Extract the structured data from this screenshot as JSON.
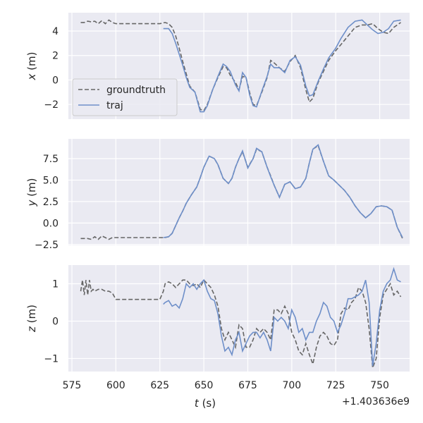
{
  "chart_data": [
    {
      "type": "line",
      "ylabel": "x (m)",
      "ylabel_var": "x",
      "ylabel_unit": " (m)",
      "xlim": [
        573,
        767
      ],
      "ylim": [
        -3.2,
        5.5
      ],
      "yticks": [
        4,
        2,
        0,
        -2
      ],
      "ytick_labels": [
        "4",
        "2",
        "0",
        "−2"
      ],
      "xticks": [
        575,
        600,
        625,
        650,
        675,
        700,
        725,
        750
      ],
      "grid": true,
      "legend": {
        "placement": "lower-left",
        "entries": [
          {
            "name": "groundtruth",
            "style": "dashed",
            "color": "#666666"
          },
          {
            "name": "traj",
            "style": "solid",
            "color": "#6e8fc9"
          }
        ]
      },
      "series": [
        {
          "name": "groundtruth",
          "x": [
            580,
            582,
            584,
            586,
            588,
            590,
            592,
            594,
            596,
            598,
            600,
            605,
            610,
            615,
            620,
            625,
            628,
            630,
            632,
            634,
            636,
            638,
            640,
            642,
            645,
            648,
            650,
            652,
            655,
            658,
            661,
            663,
            665,
            668,
            670,
            672,
            674,
            676,
            678,
            680,
            683,
            686,
            688,
            690,
            693,
            696,
            699,
            702,
            705,
            708,
            710,
            712,
            715,
            718,
            721,
            725,
            728,
            732,
            736,
            740,
            743,
            746,
            749,
            752,
            755,
            758,
            762
          ],
          "y": [
            4.7,
            4.7,
            4.8,
            4.75,
            4.8,
            4.6,
            4.85,
            4.6,
            4.9,
            4.7,
            4.6,
            4.6,
            4.6,
            4.6,
            4.6,
            4.6,
            4.7,
            4.6,
            4.3,
            3.6,
            2.6,
            1.5,
            0.5,
            -0.5,
            -1.0,
            -2.4,
            -2.5,
            -2.0,
            -0.8,
            0.2,
            1.1,
            1.0,
            0.4,
            -0.2,
            -0.8,
            0.3,
            0.2,
            -1.0,
            -2.0,
            -2.1,
            -1.0,
            0.2,
            1.6,
            1.4,
            1.0,
            0.7,
            1.5,
            2.0,
            1.0,
            -0.8,
            -1.8,
            -1.5,
            -0.2,
            0.7,
            1.6,
            2.4,
            2.9,
            3.6,
            4.3,
            4.5,
            4.5,
            4.6,
            4.2,
            3.9,
            3.8,
            4.3,
            4.7
          ]
        },
        {
          "name": "traj",
          "x": [
            627,
            630,
            632,
            634,
            636,
            638,
            640,
            642,
            645,
            648,
            650,
            652,
            655,
            658,
            661,
            663,
            665,
            668,
            670,
            672,
            674,
            676,
            678,
            680,
            683,
            686,
            688,
            690,
            693,
            696,
            699,
            702,
            705,
            708,
            710,
            712,
            715,
            718,
            721,
            725,
            728,
            732,
            736,
            740,
            743,
            746,
            749,
            752,
            755,
            758,
            762
          ],
          "y": [
            4.2,
            4.2,
            3.8,
            3.0,
            2.1,
            1.2,
            0.2,
            -0.6,
            -1.0,
            -2.6,
            -2.6,
            -2.1,
            -0.8,
            0.3,
            1.3,
            1.1,
            0.7,
            -0.4,
            -0.9,
            0.6,
            0.2,
            -1.2,
            -2.1,
            -2.2,
            -0.9,
            0.3,
            1.3,
            1.0,
            1.0,
            0.6,
            1.6,
            1.9,
            1.2,
            -0.5,
            -1.3,
            -1.2,
            -0.1,
            0.9,
            1.8,
            2.6,
            3.4,
            4.3,
            4.8,
            4.9,
            4.5,
            4.1,
            3.8,
            3.9,
            4.2,
            4.8,
            4.9
          ]
        }
      ]
    },
    {
      "type": "line",
      "ylabel": "y (m)",
      "ylabel_var": "y",
      "ylabel_unit": " (m)",
      "xlim": [
        573,
        767
      ],
      "ylim": [
        -2.6,
        9.8
      ],
      "yticks": [
        7.5,
        5.0,
        2.5,
        0.0,
        -2.5
      ],
      "ytick_labels": [
        "7.5",
        "5.0",
        "2.5",
        "0.0",
        "−2.5"
      ],
      "xticks": [
        575,
        600,
        625,
        650,
        675,
        700,
        725,
        750
      ],
      "grid": true,
      "series": [
        {
          "name": "groundtruth",
          "x": [
            580,
            584,
            586,
            588,
            590,
            592,
            594,
            596,
            598,
            600,
            605,
            610,
            615,
            620,
            625,
            628,
            630,
            632,
            634,
            636,
            638,
            640,
            643,
            646,
            648,
            650,
            653,
            656,
            658,
            661,
            664,
            666,
            668,
            670,
            672,
            675,
            678,
            680,
            683,
            686,
            688,
            690,
            693,
            696,
            699,
            702,
            705,
            708,
            710,
            712,
            715,
            718,
            721,
            724,
            727,
            730,
            733,
            736,
            739,
            742,
            745,
            748,
            751,
            754,
            757,
            760,
            763
          ],
          "y": [
            -1.8,
            -1.8,
            -1.9,
            -1.6,
            -1.9,
            -1.5,
            -1.7,
            -1.9,
            -1.7,
            -1.7,
            -1.7,
            -1.7,
            -1.7,
            -1.7,
            -1.7,
            -1.7,
            -1.6,
            -1.2,
            -0.3,
            0.6,
            1.4,
            2.3,
            3.3,
            4.2,
            5.3,
            6.5,
            7.8,
            7.5,
            6.8,
            5.2,
            4.6,
            5.2,
            6.5,
            7.5,
            8.3,
            6.5,
            7.5,
            8.6,
            8.3,
            6.5,
            5.5,
            4.4,
            3.0,
            4.5,
            4.8,
            4.0,
            4.2,
            5.2,
            7.0,
            8.6,
            9.0,
            7.2,
            5.5,
            5.0,
            4.4,
            3.8,
            3.0,
            2.0,
            1.2,
            0.6,
            1.1,
            1.9,
            2.0,
            1.9,
            1.5,
            -0.5,
            -1.8
          ]
        },
        {
          "name": "traj",
          "x": [
            627,
            630,
            632,
            634,
            636,
            638,
            640,
            643,
            646,
            648,
            650,
            653,
            656,
            658,
            661,
            664,
            666,
            668,
            670,
            672,
            675,
            678,
            680,
            683,
            686,
            688,
            690,
            693,
            696,
            699,
            702,
            705,
            708,
            710,
            712,
            715,
            718,
            721,
            724,
            727,
            730,
            733,
            736,
            739,
            742,
            745,
            748,
            751,
            754,
            757,
            760,
            763
          ],
          "y": [
            -1.7,
            -1.6,
            -1.2,
            -0.3,
            0.6,
            1.4,
            2.3,
            3.3,
            4.2,
            5.3,
            6.5,
            7.8,
            7.5,
            6.8,
            5.2,
            4.6,
            5.2,
            6.5,
            7.5,
            8.4,
            6.4,
            7.5,
            8.7,
            8.3,
            6.5,
            5.4,
            4.4,
            3.0,
            4.5,
            4.8,
            4.0,
            4.2,
            5.2,
            7.0,
            8.6,
            9.1,
            7.2,
            5.5,
            5.0,
            4.4,
            3.8,
            3.0,
            2.0,
            1.2,
            0.6,
            1.1,
            1.9,
            2.0,
            1.9,
            1.5,
            -0.5,
            -1.7
          ]
        }
      ]
    },
    {
      "type": "line",
      "ylabel": "z (m)",
      "ylabel_var": "z",
      "ylabel_unit": " (m)",
      "xlabel": "t (s)",
      "xlabel_var": "t",
      "xlabel_unit": " (s)",
      "x_offset_label": "+1.403636e9",
      "xlim": [
        573,
        767
      ],
      "ylim": [
        -1.35,
        1.5
      ],
      "yticks": [
        1,
        0,
        -1
      ],
      "ytick_labels": [
        "1",
        "0",
        "−1"
      ],
      "xticks": [
        575,
        600,
        625,
        650,
        675,
        700,
        725,
        750
      ],
      "xtick_labels": [
        "575",
        "600",
        "625",
        "650",
        "675",
        "700",
        "725",
        "750"
      ],
      "grid": true,
      "series": [
        {
          "name": "groundtruth",
          "x": [
            580,
            581,
            582,
            583,
            584,
            585,
            586,
            587,
            588,
            590,
            592,
            594,
            596,
            598,
            600,
            605,
            610,
            615,
            620,
            625,
            627,
            628,
            630,
            632,
            634,
            636,
            638,
            640,
            642,
            644,
            646,
            648,
            650,
            652,
            654,
            656,
            658,
            660,
            662,
            664,
            666,
            668,
            670,
            672,
            674,
            676,
            678,
            680,
            682,
            684,
            686,
            688,
            690,
            692,
            694,
            696,
            698,
            700,
            702,
            704,
            706,
            708,
            710,
            712,
            714,
            716,
            718,
            720,
            722,
            724,
            726,
            728,
            730,
            732,
            734,
            736,
            738,
            740,
            742,
            744,
            746,
            748,
            750,
            752,
            754,
            756,
            758,
            760,
            762
          ],
          "y": [
            0.8,
            1.1,
            0.7,
            1.1,
            0.7,
            1.1,
            0.8,
            0.85,
            0.8,
            0.85,
            0.85,
            0.8,
            0.8,
            0.75,
            0.58,
            0.58,
            0.58,
            0.58,
            0.58,
            0.58,
            0.8,
            1.0,
            1.05,
            1.0,
            0.9,
            1.0,
            1.1,
            1.1,
            1.0,
            0.95,
            1.0,
            0.9,
            1.1,
            1.0,
            0.9,
            0.7,
            0.4,
            -0.2,
            -0.5,
            -0.3,
            -0.5,
            -0.7,
            -0.1,
            -0.2,
            -0.7,
            -0.7,
            -0.5,
            -0.2,
            -0.3,
            -0.2,
            -0.3,
            -0.5,
            0.3,
            0.3,
            0.2,
            0.4,
            0.2,
            -0.3,
            -0.5,
            -0.8,
            -0.9,
            -0.6,
            -0.9,
            -1.15,
            -0.7,
            -0.4,
            -0.3,
            -0.4,
            -0.6,
            -0.65,
            -0.5,
            0.2,
            0.35,
            0.3,
            0.5,
            0.6,
            0.9,
            0.8,
            0.5,
            -0.2,
            -1.25,
            -1.0,
            0.1,
            0.7,
            0.85,
            1.0,
            0.7,
            0.8,
            0.65
          ]
        },
        {
          "name": "traj",
          "x": [
            627,
            628,
            630,
            632,
            634,
            636,
            638,
            640,
            642,
            644,
            646,
            648,
            650,
            652,
            654,
            656,
            658,
            660,
            662,
            664,
            666,
            668,
            670,
            672,
            674,
            676,
            678,
            680,
            682,
            684,
            686,
            688,
            690,
            692,
            694,
            696,
            698,
            700,
            702,
            704,
            706,
            708,
            710,
            712,
            714,
            716,
            718,
            720,
            722,
            724,
            726,
            728,
            730,
            732,
            734,
            736,
            738,
            740,
            742,
            744,
            746,
            748,
            750,
            752,
            754,
            756,
            758,
            760,
            762
          ],
          "y": [
            0.45,
            0.5,
            0.55,
            0.4,
            0.45,
            0.35,
            0.6,
            1.0,
            0.9,
            1.0,
            0.85,
            1.0,
            1.1,
            0.8,
            0.6,
            0.55,
            0.2,
            -0.4,
            -0.8,
            -0.7,
            -0.9,
            -0.5,
            -0.3,
            -0.8,
            -0.6,
            -0.4,
            -0.3,
            -0.3,
            -0.45,
            -0.3,
            -0.5,
            -0.8,
            0.1,
            0.0,
            0.1,
            0.0,
            -0.2,
            0.3,
            0.1,
            -0.3,
            -0.2,
            -0.5,
            -0.3,
            -0.3,
            0.0,
            0.2,
            0.5,
            0.4,
            0.1,
            0.0,
            -0.3,
            -0.1,
            0.2,
            0.6,
            0.6,
            0.65,
            0.7,
            0.8,
            1.1,
            0.5,
            -1.2,
            -0.6,
            0.3,
            0.8,
            1.0,
            1.1,
            1.4,
            1.1,
            1.05
          ]
        }
      ]
    }
  ]
}
